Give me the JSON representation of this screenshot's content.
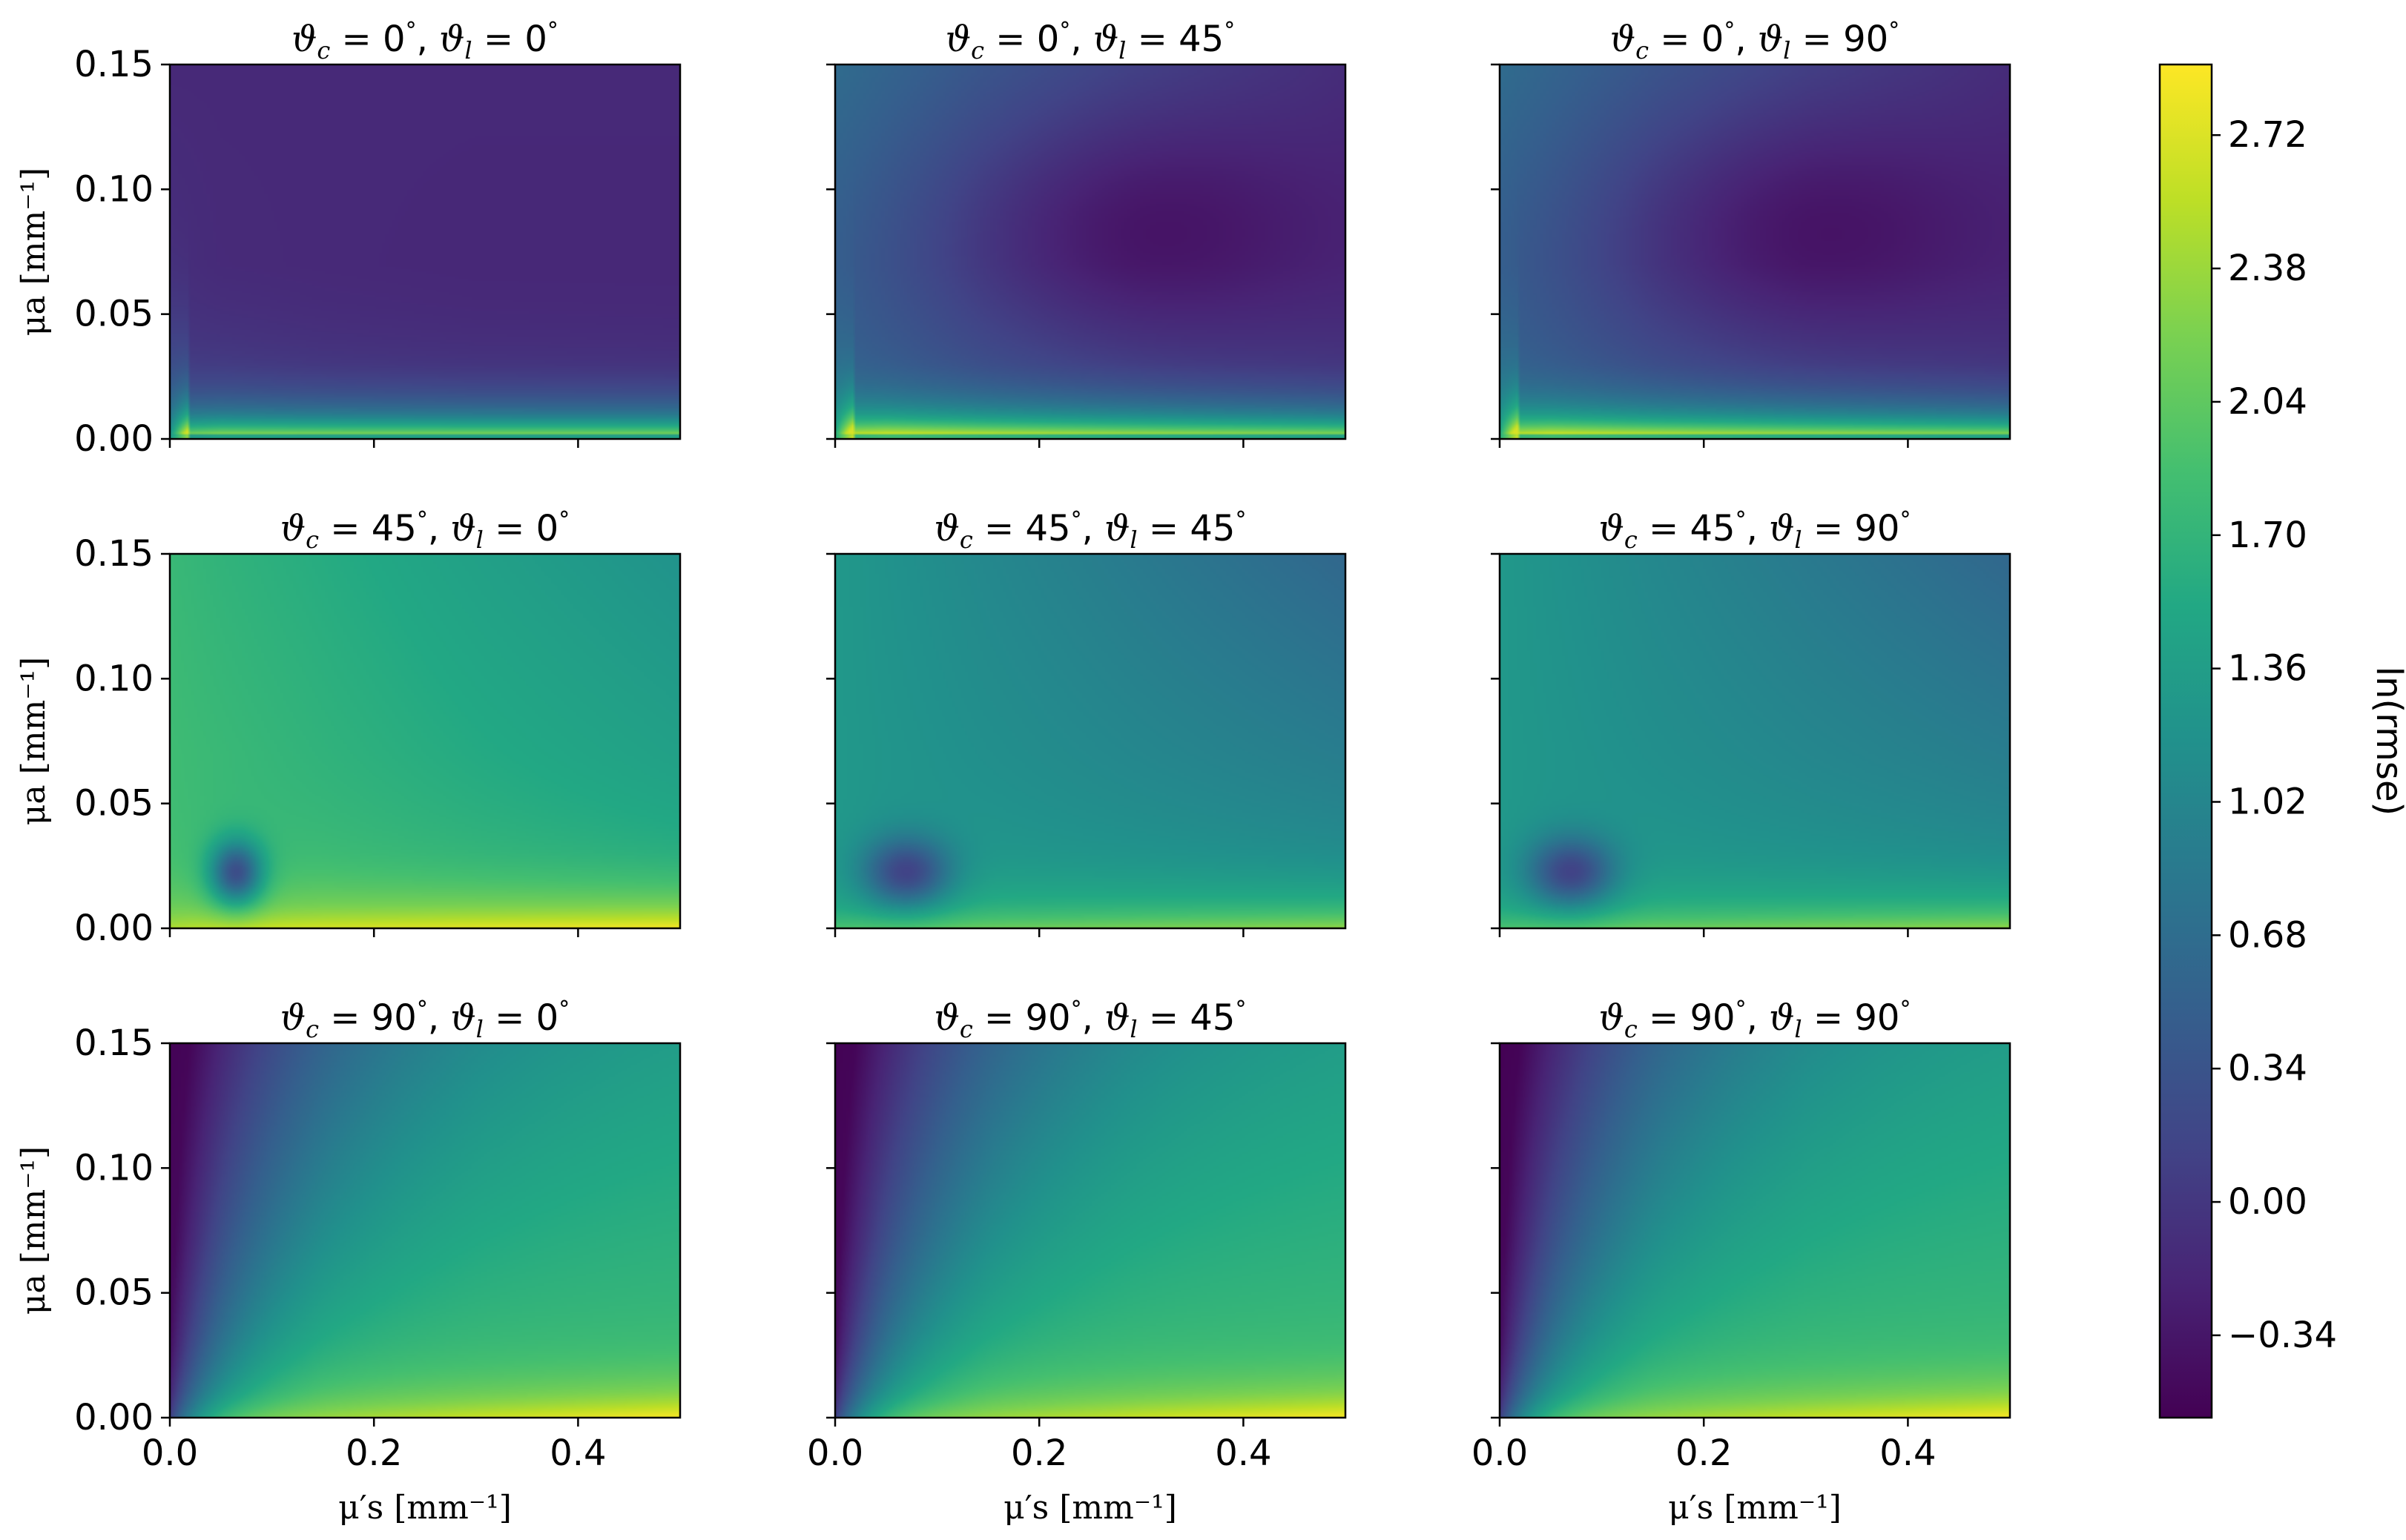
{
  "chart_data": {
    "type": "heatmap",
    "layout": "3x3 grid of heatmaps sharing axes and one colorbar",
    "colormap": "viridis",
    "xlabel": "μ′s [mm⁻¹]",
    "ylabel": "μa [mm⁻¹]",
    "xlim": [
      0.0,
      0.5
    ],
    "ylim": [
      0.0,
      0.15
    ],
    "xticks": [
      0.0,
      0.2,
      0.4
    ],
    "xtick_labels": [
      "0.0",
      "0.2",
      "0.4"
    ],
    "yticks": [
      0.0,
      0.05,
      0.1,
      0.15
    ],
    "ytick_labels": [
      "0.00",
      "0.05",
      "0.10",
      "0.15"
    ],
    "colorbar": {
      "label": "ln(rmse)",
      "range": [
        -0.55,
        2.9
      ],
      "ticks": [
        -0.34,
        0.0,
        0.34,
        0.68,
        1.02,
        1.36,
        1.7,
        2.04,
        2.38,
        2.72
      ],
      "tick_labels": [
        "−0.34",
        "0.00",
        "0.34",
        "0.68",
        "1.02",
        "1.36",
        "1.70",
        "2.04",
        "2.38",
        "2.72"
      ]
    },
    "panels": [
      {
        "theta_c": "0",
        "theta_l": "0",
        "pattern": "A",
        "grid_x": [
          0.0,
          0.05,
          0.15,
          0.3,
          0.5
        ],
        "grid_y": [
          0.0,
          0.01,
          0.03,
          0.07,
          0.15
        ],
        "z": [
          [
            1.5,
            2.8,
            2.6,
            2.5,
            2.4
          ],
          [
            1.3,
            1.6,
            1.3,
            1.1,
            1.0
          ],
          [
            0.8,
            0.7,
            0.4,
            0.2,
            0.1
          ],
          [
            0.3,
            0.0,
            -0.1,
            -0.2,
            -0.2
          ],
          [
            -0.1,
            -0.1,
            -0.1,
            -0.1,
            -0.1
          ]
        ]
      },
      {
        "theta_c": "0",
        "theta_l": "45",
        "pattern": "B",
        "grid_x": [
          0.0,
          0.05,
          0.15,
          0.3,
          0.5
        ],
        "grid_y": [
          0.0,
          0.01,
          0.03,
          0.07,
          0.15
        ],
        "z": [
          [
            1.5,
            2.8,
            2.6,
            2.5,
            2.4
          ],
          [
            1.4,
            1.7,
            1.4,
            1.3,
            1.2
          ],
          [
            0.9,
            0.7,
            0.3,
            0.1,
            0.05
          ],
          [
            0.4,
            0.2,
            -0.2,
            -0.4,
            -0.35
          ],
          [
            0.5,
            0.3,
            0.0,
            -0.2,
            -0.35
          ]
        ]
      },
      {
        "theta_c": "0",
        "theta_l": "90",
        "pattern": "B",
        "grid_x": [
          0.0,
          0.05,
          0.15,
          0.3,
          0.5
        ],
        "grid_y": [
          0.0,
          0.01,
          0.03,
          0.07,
          0.15
        ],
        "z": [
          [
            1.5,
            2.8,
            2.6,
            2.5,
            2.4
          ],
          [
            1.4,
            1.7,
            1.4,
            1.3,
            1.2
          ],
          [
            0.9,
            0.7,
            0.3,
            0.1,
            0.05
          ],
          [
            0.4,
            0.2,
            -0.25,
            -0.45,
            -0.4
          ],
          [
            0.5,
            0.3,
            0.0,
            -0.25,
            -0.4
          ]
        ]
      },
      {
        "theta_c": "45",
        "theta_l": "0",
        "pattern": "C",
        "grid_x": [
          0.0,
          0.05,
          0.15,
          0.3,
          0.5
        ],
        "grid_y": [
          0.0,
          0.01,
          0.03,
          0.07,
          0.15
        ],
        "z": [
          [
            1.6,
            2.2,
            2.5,
            2.6,
            2.7
          ],
          [
            1.4,
            1.6,
            2.0,
            2.2,
            2.4
          ],
          [
            1.5,
            1.3,
            1.6,
            1.6,
            1.7
          ],
          [
            1.7,
            1.6,
            1.5,
            1.4,
            1.4
          ],
          [
            1.8,
            1.6,
            1.5,
            1.3,
            1.2
          ]
        ]
      },
      {
        "theta_c": "45",
        "theta_l": "45",
        "pattern": "D",
        "grid_x": [
          0.0,
          0.05,
          0.15,
          0.3,
          0.5
        ],
        "grid_y": [
          0.0,
          0.01,
          0.03,
          0.07,
          0.15
        ],
        "z": [
          [
            1.3,
            1.8,
            2.2,
            2.4,
            2.6
          ],
          [
            0.9,
            1.0,
            1.6,
            1.8,
            2.0
          ],
          [
            1.1,
            0.9,
            1.2,
            1.3,
            1.4
          ],
          [
            1.2,
            1.1,
            1.0,
            1.0,
            1.1
          ],
          [
            1.2,
            1.0,
            0.8,
            0.7,
            0.6
          ]
        ]
      },
      {
        "theta_c": "45",
        "theta_l": "90",
        "pattern": "D",
        "grid_x": [
          0.0,
          0.05,
          0.15,
          0.3,
          0.5
        ],
        "grid_y": [
          0.0,
          0.01,
          0.03,
          0.07,
          0.15
        ],
        "z": [
          [
            1.3,
            1.8,
            2.2,
            2.4,
            2.6
          ],
          [
            0.9,
            1.0,
            1.6,
            1.8,
            2.0
          ],
          [
            1.1,
            0.9,
            1.2,
            1.3,
            1.4
          ],
          [
            1.2,
            1.1,
            1.0,
            1.0,
            1.1
          ],
          [
            1.2,
            1.0,
            0.8,
            0.7,
            0.6
          ]
        ]
      },
      {
        "theta_c": "90",
        "theta_l": "0",
        "pattern": "E",
        "grid_x": [
          0.0,
          0.05,
          0.15,
          0.3,
          0.5
        ],
        "grid_y": [
          0.0,
          0.01,
          0.03,
          0.07,
          0.15
        ],
        "z": [
          [
            1.2,
            1.8,
            2.2,
            2.5,
            2.7
          ],
          [
            0.9,
            1.2,
            1.9,
            2.1,
            2.3
          ],
          [
            0.4,
            1.0,
            1.6,
            1.8,
            1.9
          ],
          [
            -0.1,
            0.6,
            1.2,
            1.5,
            1.7
          ],
          [
            -0.4,
            0.0,
            0.6,
            1.0,
            1.2
          ]
        ]
      },
      {
        "theta_c": "90",
        "theta_l": "45",
        "pattern": "E",
        "grid_x": [
          0.0,
          0.05,
          0.15,
          0.3,
          0.5
        ],
        "grid_y": [
          0.0,
          0.01,
          0.03,
          0.07,
          0.15
        ],
        "z": [
          [
            1.2,
            1.8,
            2.2,
            2.5,
            2.7
          ],
          [
            0.9,
            1.2,
            1.9,
            2.1,
            2.3
          ],
          [
            0.3,
            1.0,
            1.6,
            1.8,
            1.9
          ],
          [
            -0.2,
            0.5,
            1.2,
            1.5,
            1.7
          ],
          [
            -0.45,
            -0.05,
            0.6,
            1.0,
            1.2
          ]
        ]
      },
      {
        "theta_c": "90",
        "theta_l": "90",
        "pattern": "E",
        "grid_x": [
          0.0,
          0.05,
          0.15,
          0.3,
          0.5
        ],
        "grid_y": [
          0.0,
          0.01,
          0.03,
          0.07,
          0.15
        ],
        "z": [
          [
            1.2,
            1.8,
            2.2,
            2.5,
            2.7
          ],
          [
            0.9,
            1.2,
            1.9,
            2.1,
            2.3
          ],
          [
            0.3,
            1.0,
            1.6,
            1.8,
            1.9
          ],
          [
            -0.2,
            0.5,
            1.2,
            1.5,
            1.7
          ],
          [
            -0.5,
            -0.1,
            0.6,
            1.0,
            1.2
          ]
        ]
      }
    ]
  }
}
